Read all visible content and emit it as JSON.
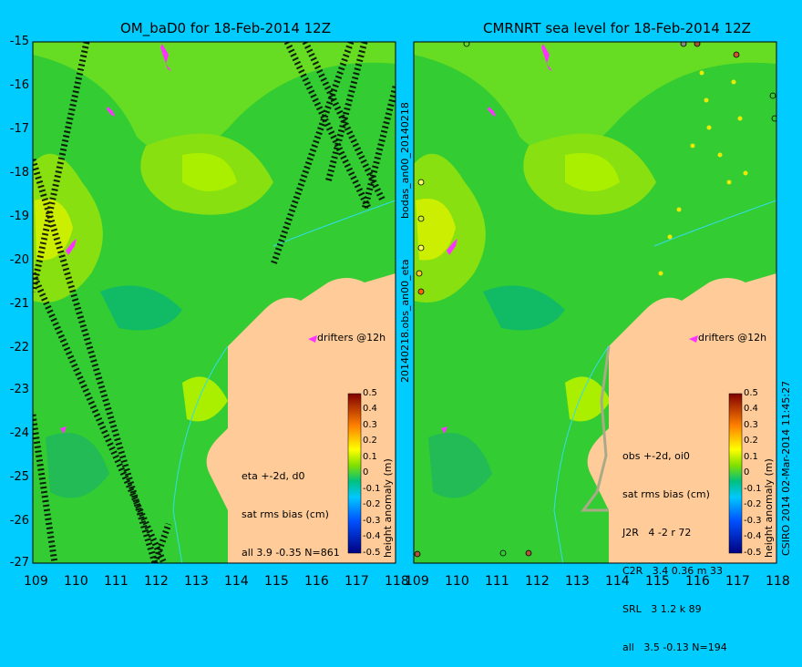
{
  "left_panel": {
    "title": "OM_baD0 for 18-Feb-2014 12Z",
    "drifters_label": "drifters @12h",
    "stats": [
      "eta +-2d, d0",
      "sat rms bias (cm)",
      "all 3.9 -0.35 N=861"
    ]
  },
  "right_panel": {
    "title": "CMRNRT sea level  for 18-Feb-2014 12Z",
    "drifters_label": "drifters @12h",
    "stats": [
      "obs +-2d, oi0",
      "sat rms bias (cm)",
      "J2R   4 -2 r 72",
      "C2R   3.4 0.36 m 33",
      "SRL   3 1.2 k 89",
      "all   3.5 -0.13 N=194"
    ]
  },
  "y_ticks": [
    "-15",
    "-16",
    "-17",
    "-18",
    "-19",
    "-20",
    "-21",
    "-22",
    "-23",
    "-24",
    "-25",
    "-26",
    "-27"
  ],
  "x_ticks": [
    "109",
    "110",
    "111",
    "112",
    "113",
    "114",
    "115",
    "116",
    "117",
    "118"
  ],
  "colorbar": {
    "ticks": [
      "0.5",
      "0.4",
      "0.3",
      "0.2",
      "0.1",
      "0",
      "-0.1",
      "-0.2",
      "-0.3",
      "-0.4",
      "-0.5"
    ],
    "label": "height anomaly (m)"
  },
  "middle_label": "20140218.obs_an00_eta",
  "middle_label_top": "bodas_an00_20140218",
  "copyright": "CSIRO 2014   02-Mar-2014 11:45:27",
  "colors": {
    "background": "#00ccff",
    "land": "#ffcc99",
    "ocean_base": "#33cc33",
    "drifter": "#ff33ff"
  }
}
